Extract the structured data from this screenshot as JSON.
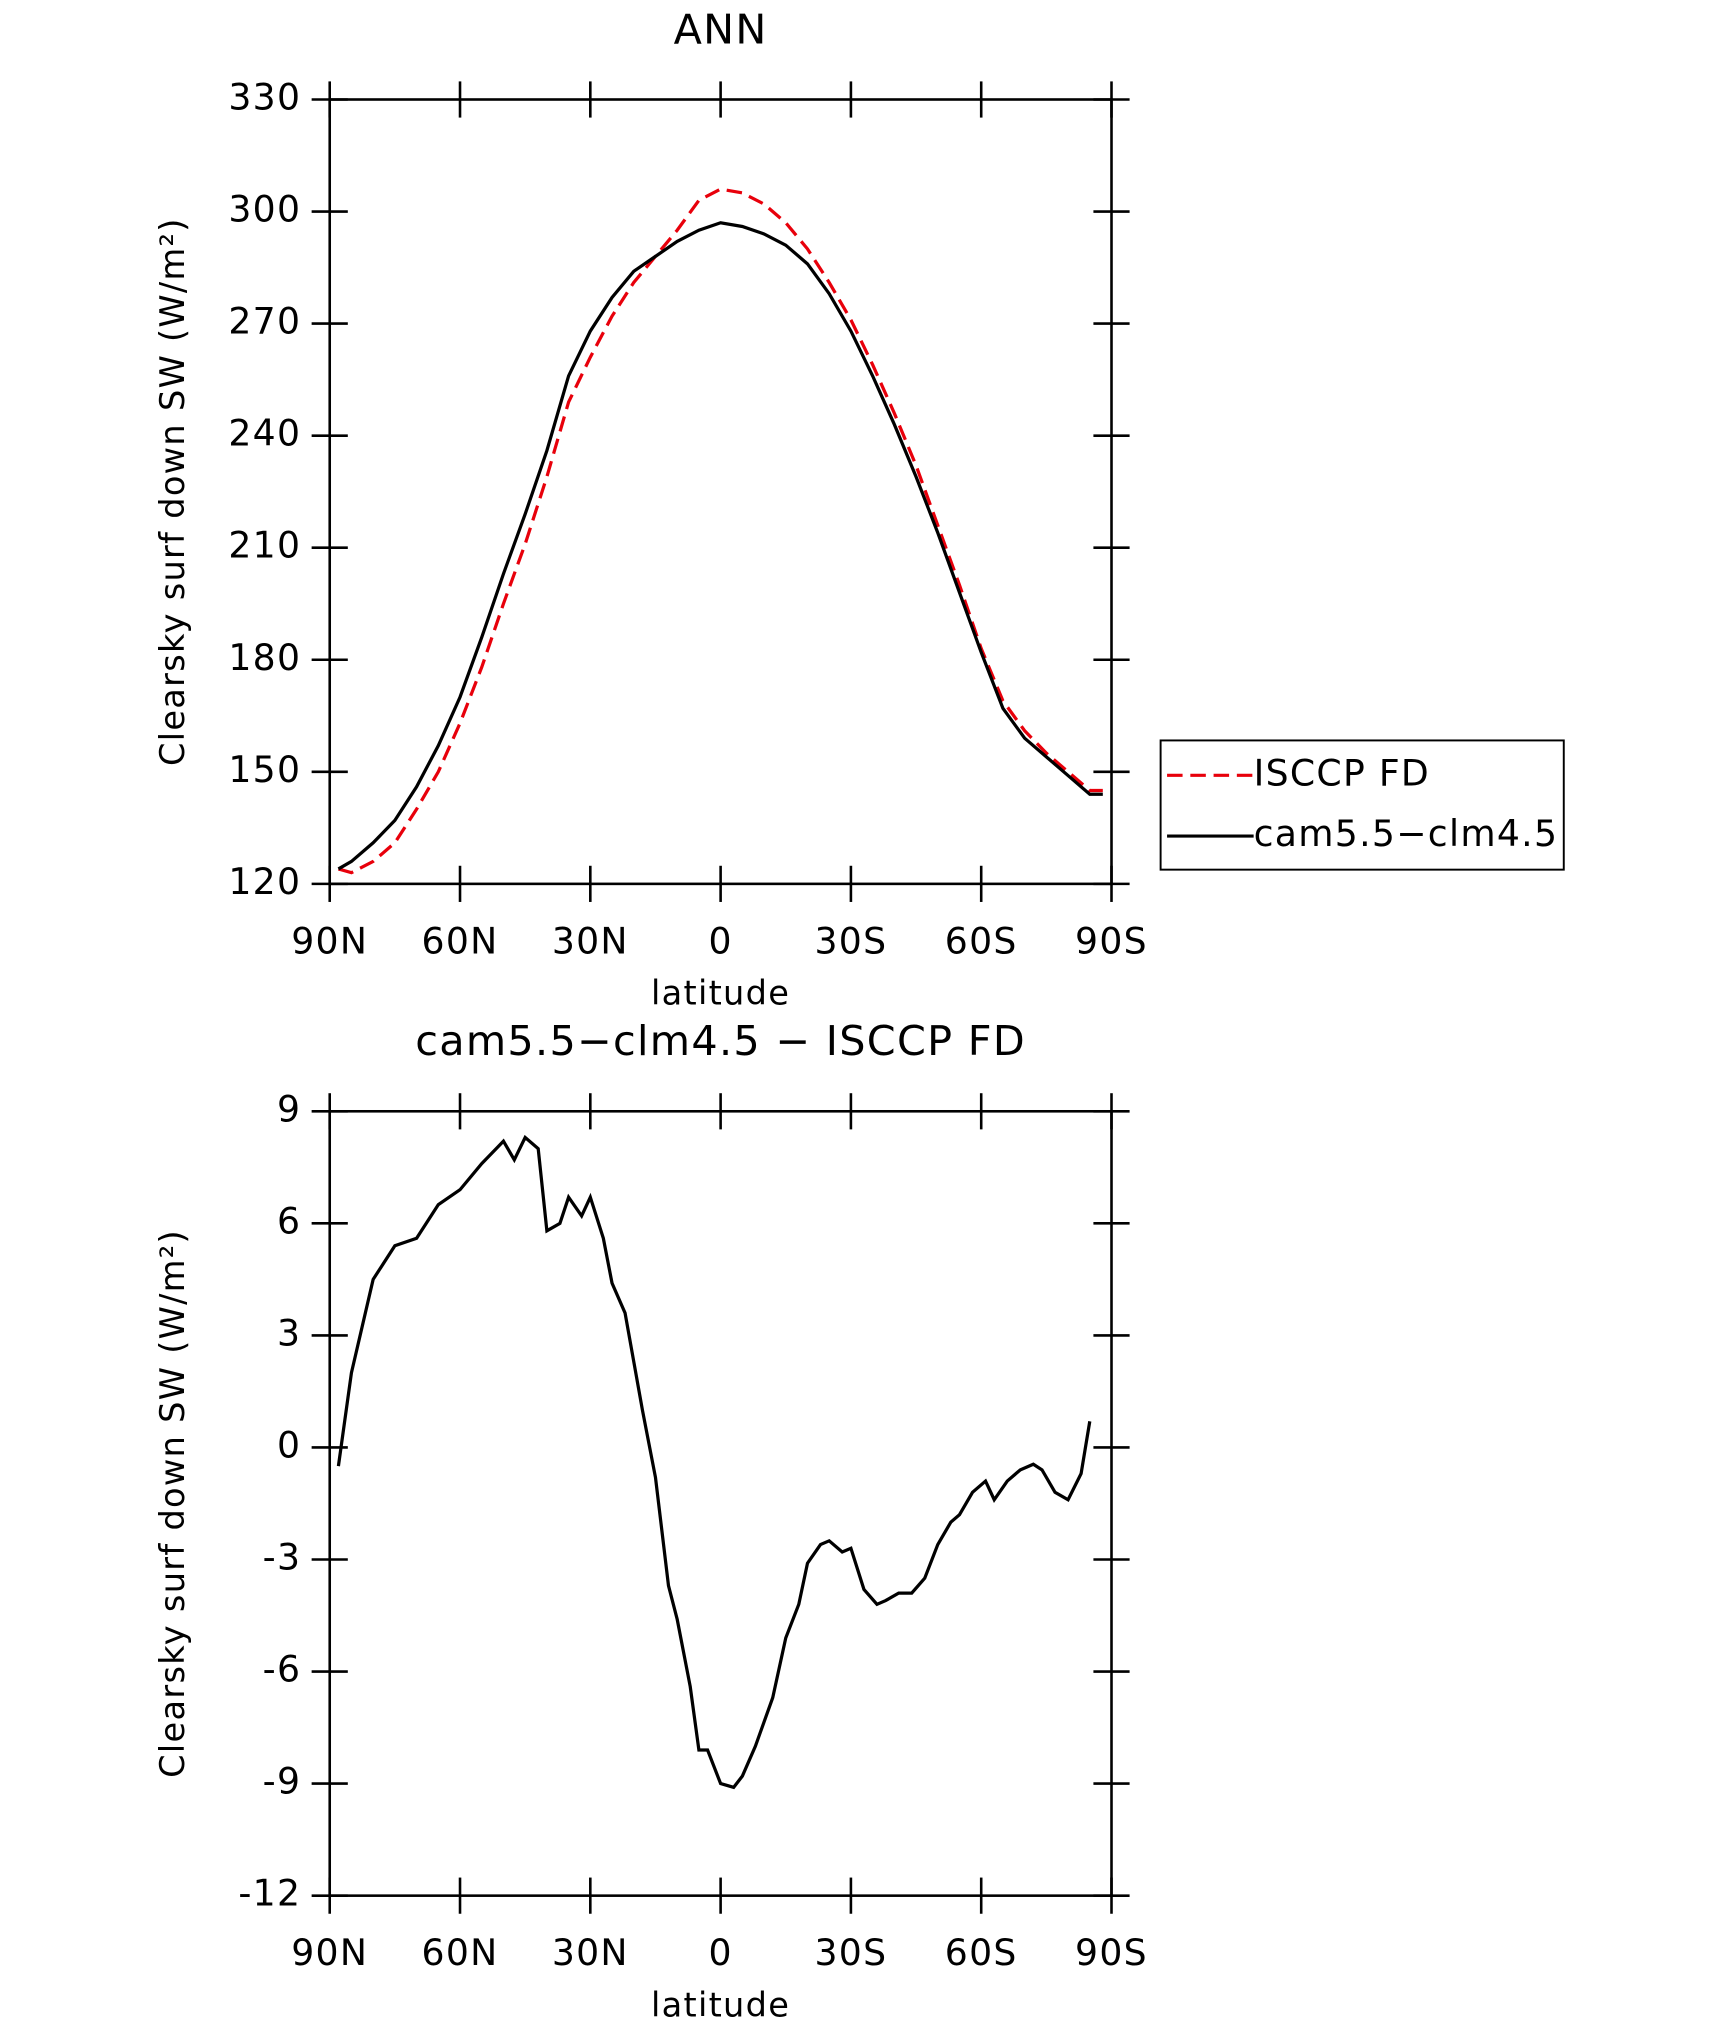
{
  "chart_data": [
    {
      "type": "line",
      "title": "ANN",
      "x_label": "latitude",
      "y_label": "Clearsky surf down SW (W/m²)",
      "x": [
        88,
        85,
        80,
        75,
        70,
        65,
        60,
        55,
        50,
        45,
        40,
        35,
        30,
        25,
        20,
        15,
        10,
        5,
        0,
        -5,
        -10,
        -15,
        -20,
        -25,
        -30,
        -35,
        -40,
        -45,
        -50,
        -55,
        -60,
        -65,
        -70,
        -75,
        -80,
        -85,
        -88
      ],
      "series": [
        {
          "name": "ISCCP FD",
          "color": "#e8000b",
          "dash": true,
          "values": [
            124,
            123,
            126,
            131,
            140,
            150,
            163,
            178,
            195,
            211,
            229,
            249,
            261,
            272,
            281,
            288,
            295,
            303,
            306,
            305,
            302,
            297,
            290,
            281,
            271,
            259,
            246,
            232,
            216,
            200,
            183,
            169,
            161,
            155,
            150,
            145,
            145
          ]
        },
        {
          "name": "cam5.5−clm4.5",
          "color": "#000000",
          "dash": false,
          "values": [
            124,
            126,
            131,
            137,
            146,
            157,
            170,
            186,
            203,
            219,
            236,
            256,
            268,
            277,
            284,
            288,
            292,
            295,
            297,
            296,
            294,
            291,
            286,
            278,
            268,
            256,
            243,
            229,
            214,
            198,
            182,
            167,
            159,
            154,
            149,
            144,
            144
          ]
        }
      ],
      "xlim": [
        90,
        -90
      ],
      "xticks": [
        {
          "value": 90,
          "label": "90N"
        },
        {
          "value": 60,
          "label": "60N"
        },
        {
          "value": 30,
          "label": "30N"
        },
        0,
        {
          "value": -30,
          "label": "30S"
        },
        {
          "value": -60,
          "label": "60S"
        },
        {
          "value": -90,
          "label": "90S"
        }
      ],
      "ylim": [
        120,
        330
      ],
      "yticks": [
        120,
        150,
        180,
        210,
        240,
        270,
        300,
        330
      ],
      "legend": "outside-right"
    },
    {
      "type": "line",
      "title": "cam5.5−clm4.5 − ISCCP FD",
      "x_label": "latitude",
      "y_label": "Clearsky surf down SW (W/m²)",
      "x": [
        88,
        85,
        80,
        75,
        70,
        65,
        60,
        55,
        50,
        47.5,
        45,
        42,
        40,
        37,
        35,
        32,
        30,
        27,
        25,
        22,
        18,
        15,
        12,
        10,
        7,
        5,
        3,
        0,
        -3,
        -5,
        -8,
        -12,
        -15,
        -18,
        -20,
        -23,
        -25,
        -28,
        -30,
        -33,
        -36,
        -38,
        -41,
        -44,
        -47,
        -50,
        -53,
        -55,
        -58,
        -61,
        -63,
        -66,
        -69,
        -72,
        -74,
        -77,
        -80,
        -83,
        -85
      ],
      "series": [
        {
          "name": "cam5.5−clm4.5 − ISCCP FD",
          "color": "#000000",
          "dash": false,
          "values": [
            -0.5,
            2,
            4.5,
            5.4,
            5.6,
            6.5,
            6.9,
            7.6,
            8.2,
            7.7,
            8.3,
            8,
            5.8,
            6,
            6.7,
            6.2,
            6.7,
            5.6,
            4.4,
            3.6,
            1,
            -0.8,
            -3.7,
            -4.6,
            -6.4,
            -8.1,
            -8.1,
            -9,
            -9.1,
            -8.8,
            -8,
            -6.7,
            -5.1,
            -4.2,
            -3.1,
            -2.6,
            -2.5,
            -2.8,
            -2.7,
            -3.8,
            -4.2,
            -4.1,
            -3.9,
            -3.9,
            -3.5,
            -2.6,
            -2,
            -1.8,
            -1.2,
            -0.9,
            -1.4,
            -0.9,
            -0.6,
            -0.45,
            -0.6,
            -1.2,
            -1.4,
            -0.7,
            0.7
          ]
        }
      ],
      "xlim": [
        90,
        -90
      ],
      "xticks": [
        {
          "value": 90,
          "label": "90N"
        },
        {
          "value": 60,
          "label": "60N"
        },
        {
          "value": 30,
          "label": "30N"
        },
        0,
        {
          "value": -30,
          "label": "30S"
        },
        {
          "value": -60,
          "label": "60S"
        },
        {
          "value": -90,
          "label": "90S"
        }
      ],
      "ylim": [
        -12,
        9
      ],
      "yticks": [
        -12,
        -9,
        -6,
        -3,
        0,
        3,
        6,
        9
      ]
    }
  ]
}
